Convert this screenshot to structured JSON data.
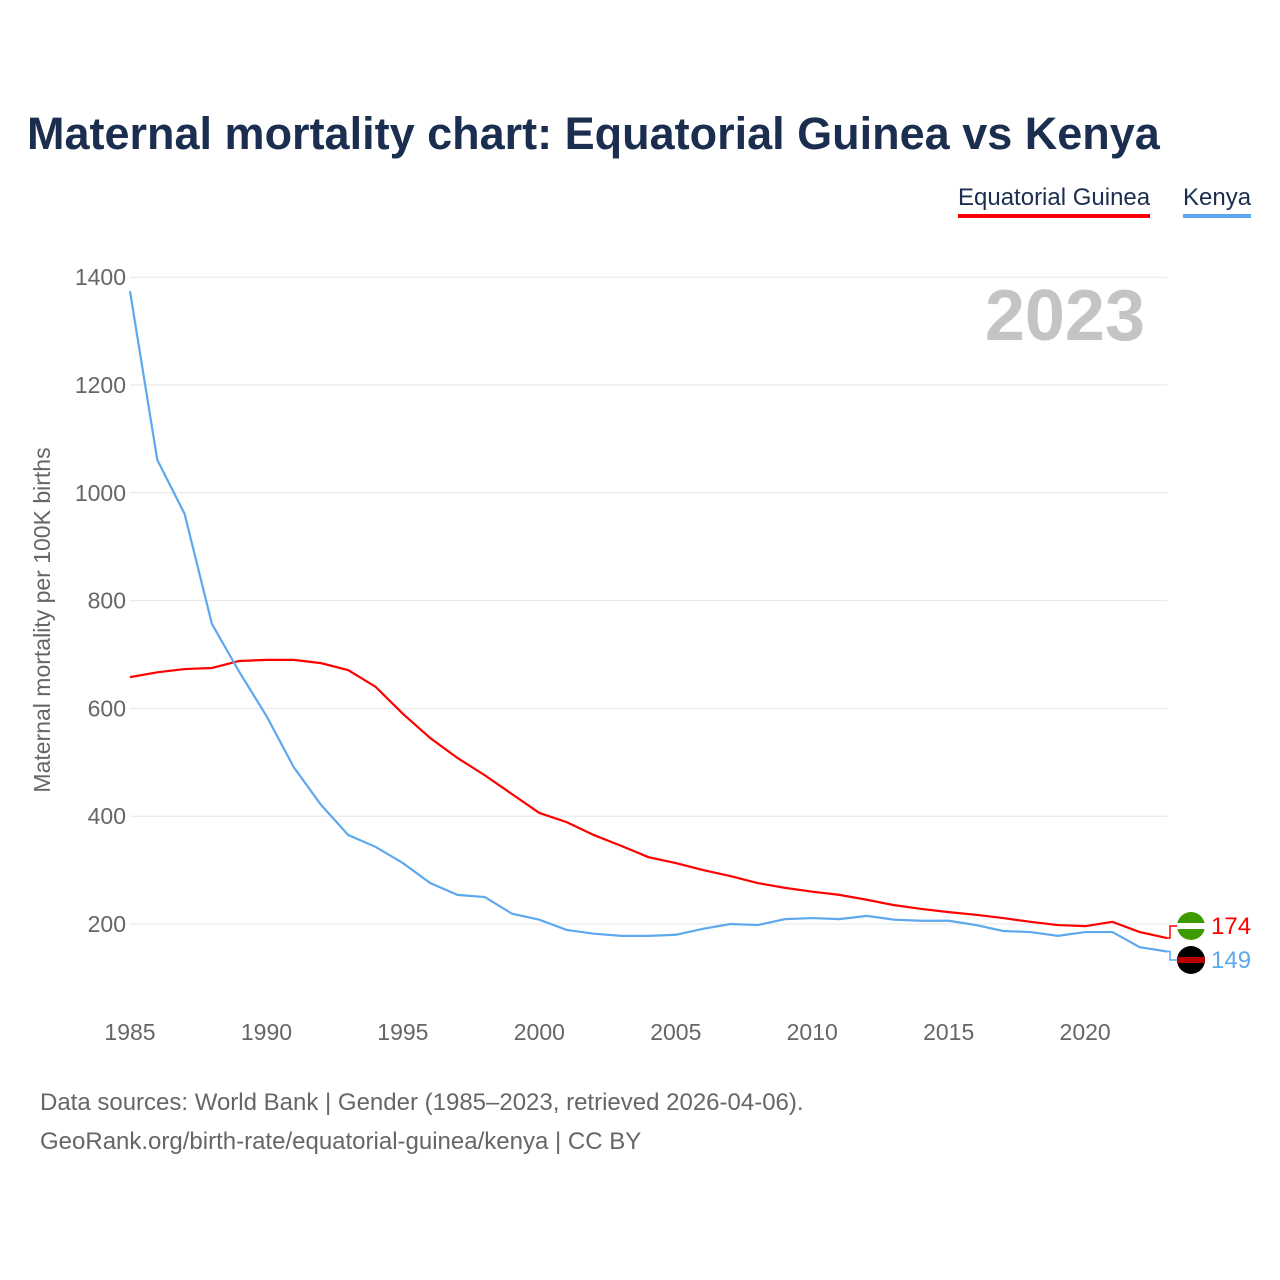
{
  "title": "Maternal mortality chart: Equatorial Guinea vs Kenya",
  "footer": {
    "line1": "Data sources: World Bank | Gender (1985–2023, retrieved 2026-04-06).",
    "line2": "GeoRank.org/birth-rate/equatorial-guinea/kenya | CC BY"
  },
  "chart_data": {
    "type": "line",
    "title": "Maternal mortality chart: Equatorial Guinea vs Kenya",
    "ylabel": "Maternal mortality per 100K births",
    "xlabel": "",
    "year_label": "2023",
    "ylim": [
      0,
      1400
    ],
    "xlim": [
      1985,
      2023
    ],
    "yticks": [
      200,
      400,
      600,
      800,
      1000,
      1200,
      1400
    ],
    "xticks": [
      1985,
      1990,
      1995,
      2000,
      2005,
      2010,
      2015,
      2020
    ],
    "grid": true,
    "legend_placement": "top-right",
    "x": [
      1985,
      1986,
      1987,
      1988,
      1989,
      1990,
      1991,
      1992,
      1993,
      1994,
      1995,
      1996,
      1997,
      1998,
      1999,
      2000,
      2001,
      2002,
      2003,
      2004,
      2005,
      2006,
      2007,
      2008,
      2009,
      2010,
      2011,
      2012,
      2013,
      2014,
      2015,
      2016,
      2017,
      2018,
      2019,
      2020,
      2021,
      2022,
      2023
    ],
    "series": [
      {
        "name": "Equatorial Guinea",
        "color": "#ff0000",
        "end_label": "174",
        "values": [
          658,
          667,
          673,
          675,
          688,
          690,
          690,
          684,
          671,
          640,
          590,
          545,
          508,
          476,
          441,
          406,
          389,
          365,
          345,
          324,
          313,
          300,
          289,
          276,
          267,
          260,
          254,
          245,
          235,
          228,
          222,
          217,
          211,
          204,
          198,
          196,
          204,
          185,
          174
        ]
      },
      {
        "name": "Kenya",
        "color": "#5da8ee",
        "end_label": "149",
        "values": [
          1374,
          1061,
          961,
          757,
          668,
          586,
          491,
          421,
          365,
          343,
          313,
          276,
          254,
          250,
          219,
          208,
          189,
          182,
          178,
          178,
          180,
          191,
          200,
          198,
          209,
          211,
          209,
          215,
          208,
          206,
          206,
          198,
          187,
          185,
          178,
          185,
          185,
          157,
          149
        ]
      }
    ]
  }
}
